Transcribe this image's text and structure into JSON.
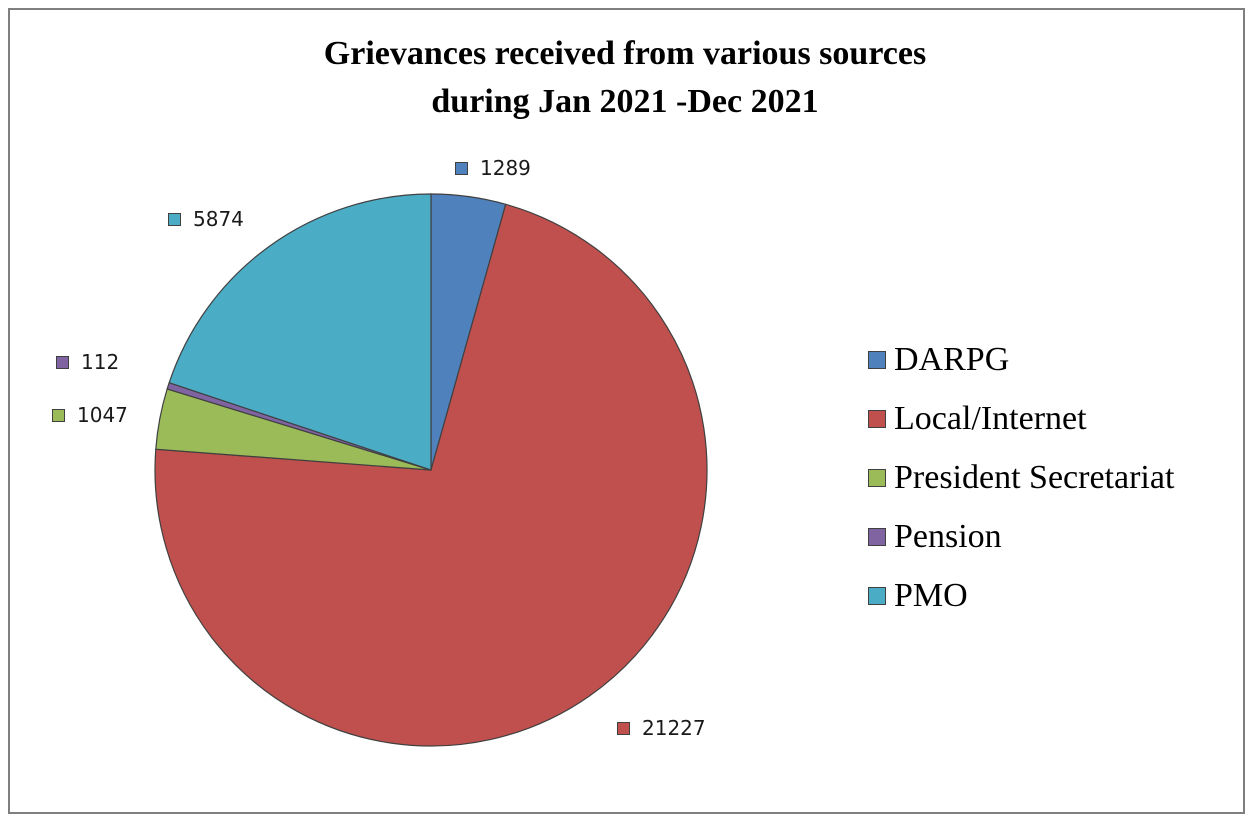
{
  "chart_data": {
    "type": "pie",
    "title_lines": [
      "Grievances received from various sources",
      "during Jan 2021 -Dec 2021"
    ],
    "categories": [
      "DARPG",
      "Local/Internet",
      "President Secretariat",
      "Pension",
      "PMO"
    ],
    "values": [
      1289,
      21227,
      1047,
      112,
      5874
    ],
    "value_labels": [
      "1289",
      "21227",
      "1047",
      "112",
      "5874"
    ],
    "colors": [
      "#4f81bd",
      "#c0504d",
      "#9bbb59",
      "#8064a2",
      "#4bacc6"
    ],
    "start_angle_deg": 0,
    "direction": "clockwise",
    "legend_position": "right",
    "data_labels": "outside-with-swatch"
  }
}
